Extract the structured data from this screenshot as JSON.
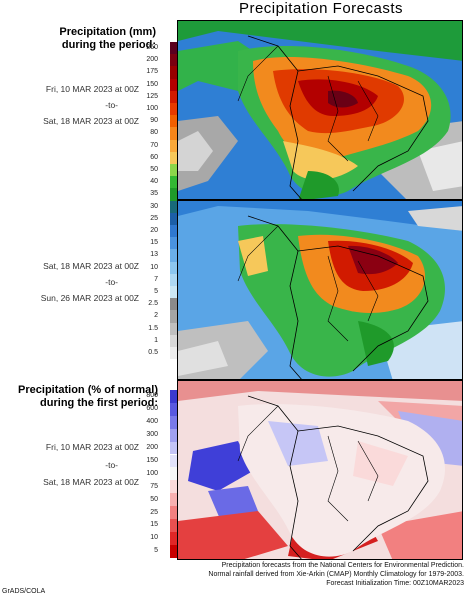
{
  "title": "Precipitation Forecasts",
  "panel1": {
    "heading_line1": "Precipitation (mm)",
    "heading_line2": "during the period:",
    "start": "Fri, 10 MAR 2023 at 00Z",
    "to": "-to-",
    "end": "Sat, 18 MAR 2023 at 00Z"
  },
  "panel2": {
    "start": "Sat, 18 MAR 2023 at 00Z",
    "to": "-to-",
    "end": "Sun, 26 MAR 2023 at 00Z"
  },
  "panel3": {
    "heading_line1": "Precipitation (% of normal)",
    "heading_line2": "during the first period:",
    "start": "Fri, 10 MAR 2023 at 00Z",
    "to": "-to-",
    "end": "Sat, 18 MAR 2023 at 00Z"
  },
  "precip_scale": {
    "labels": [
      "250",
      "200",
      "175",
      "150",
      "125",
      "100",
      "90",
      "80",
      "70",
      "60",
      "50",
      "40",
      "35",
      "30",
      "25",
      "20",
      "15",
      "13",
      "10",
      "7",
      "5",
      "2.5",
      "2",
      "1.5",
      "1",
      "0.5"
    ],
    "colors": [
      "#5a0020",
      "#7a0010",
      "#990000",
      "#b30000",
      "#d11a00",
      "#e83a00",
      "#f25f00",
      "#f7851a",
      "#f9a83a",
      "#f6c85a",
      "#8bd64a",
      "#33b833",
      "#1f9a2a",
      "#186a7a",
      "#1c5fa8",
      "#2f78d0",
      "#4a93e0",
      "#6aaee8",
      "#8cc6ef",
      "#aed8f3",
      "#cbe7f5",
      "#8a8a8a",
      "#a5a5a5",
      "#bfbfbf",
      "#d8d8d8",
      "#ededed"
    ]
  },
  "normal_scale": {
    "labels": [
      "800",
      "600",
      "400",
      "300",
      "200",
      "150",
      "100",
      "75",
      "50",
      "25",
      "15",
      "10",
      "5"
    ],
    "colors": [
      "#3a3ad0",
      "#5959e0",
      "#7a7aea",
      "#a0a0f0",
      "#c4c4f6",
      "#e2e2fa",
      "#f6f6f6",
      "#fadada",
      "#f7b0b0",
      "#f28080",
      "#ea5050",
      "#e02626",
      "#c80000"
    ]
  },
  "footer": {
    "line1": "Precipitation forecasts from the National Centers for Environmental Prediction.",
    "line2": "Normal rainfall derived from Xie-Arkin (CMAP) Monthly Climatology for 1979-2003.",
    "line3": "Forecast Initialization Time: 00Z10MAR2023"
  },
  "credit": "GrADS/COLA"
}
